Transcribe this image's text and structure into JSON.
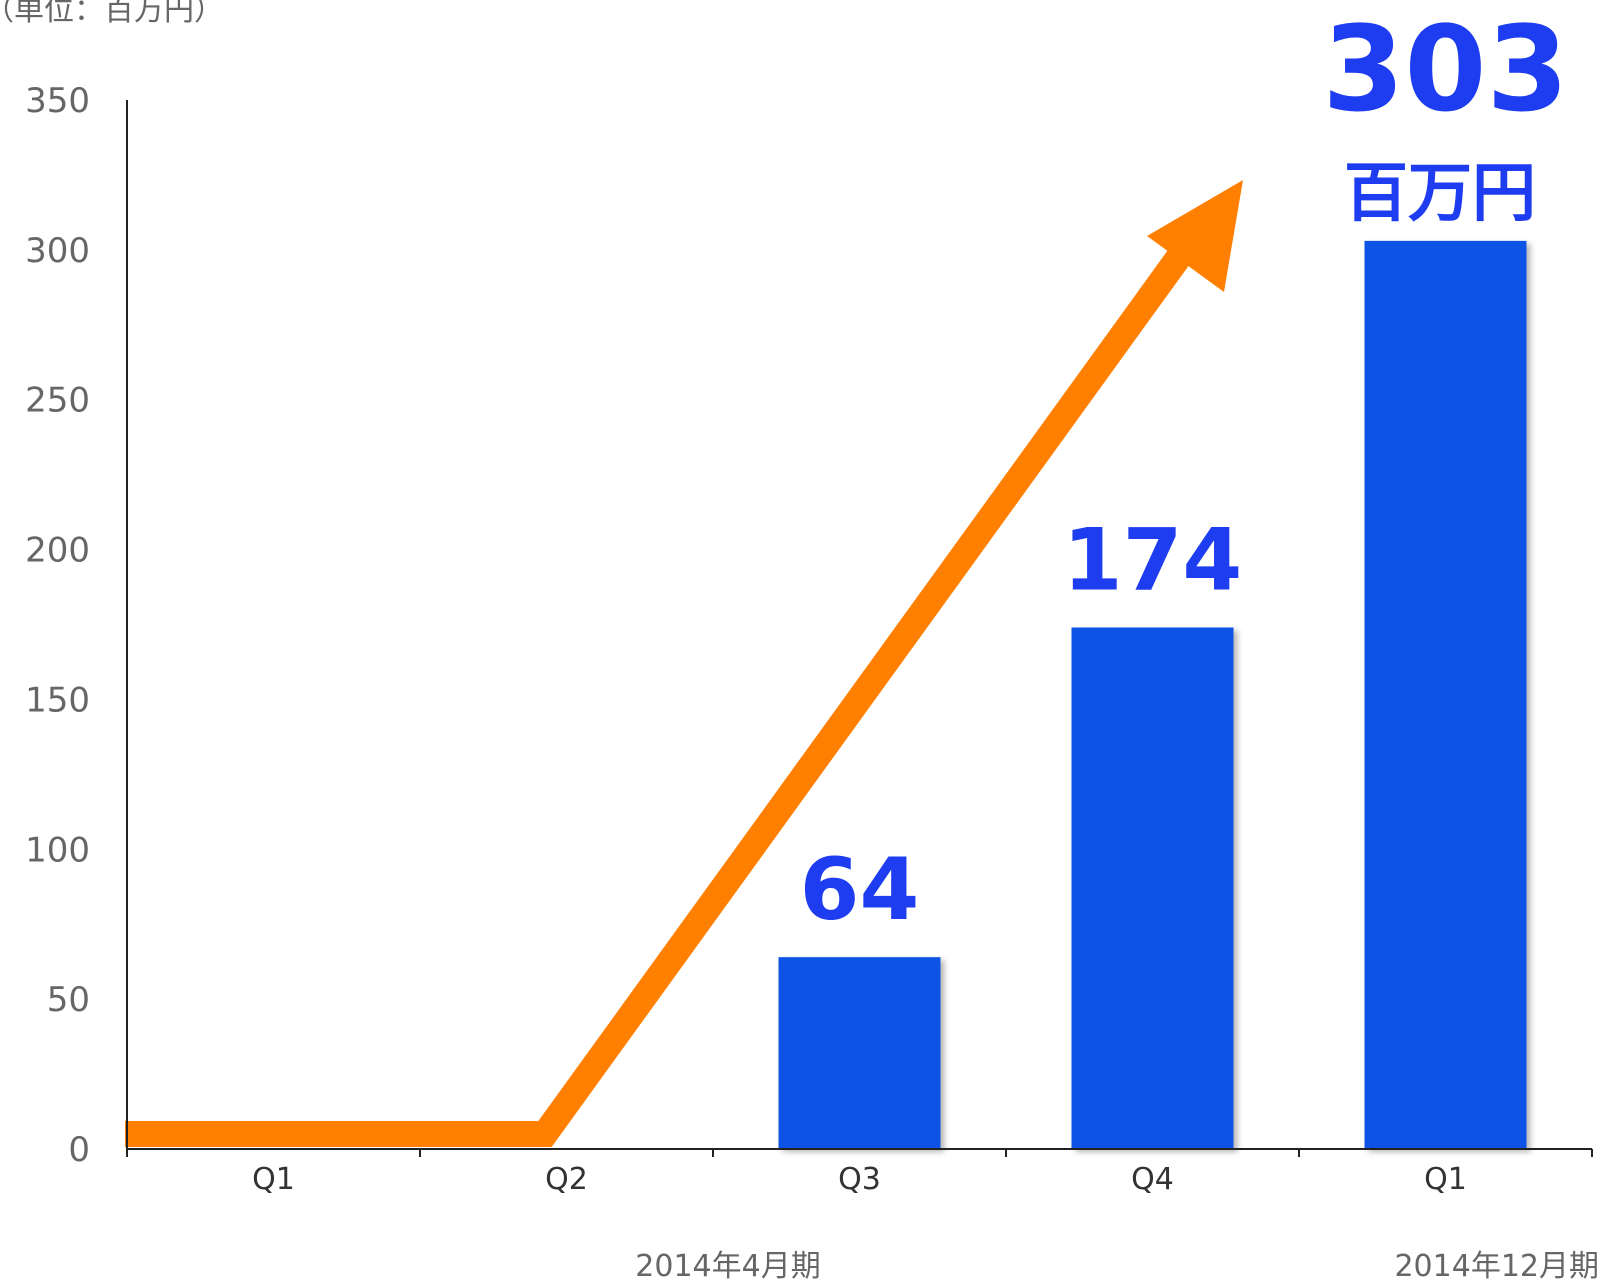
{
  "chart_data": {
    "type": "bar",
    "unit_label": "（単位：百万円）",
    "categories": [
      "Q1",
      "Q2",
      "Q3",
      "Q4",
      "Q1"
    ],
    "periods": [
      "2014年4月期",
      "2014年12月期"
    ],
    "series": [
      {
        "values": [
          0,
          0,
          64,
          174,
          303
        ]
      }
    ],
    "data_labels": [
      "",
      "",
      "64",
      "174",
      "303"
    ],
    "highlight_unit": "百万円",
    "ylim": [
      0,
      350
    ],
    "yticks": [
      0,
      50,
      100,
      150,
      200,
      250,
      300,
      350
    ],
    "grid": false,
    "colors": {
      "bar": "#0A52E6",
      "label": "#1E3DF0",
      "arrow": "#FF7F00",
      "axis": "#222222"
    }
  }
}
